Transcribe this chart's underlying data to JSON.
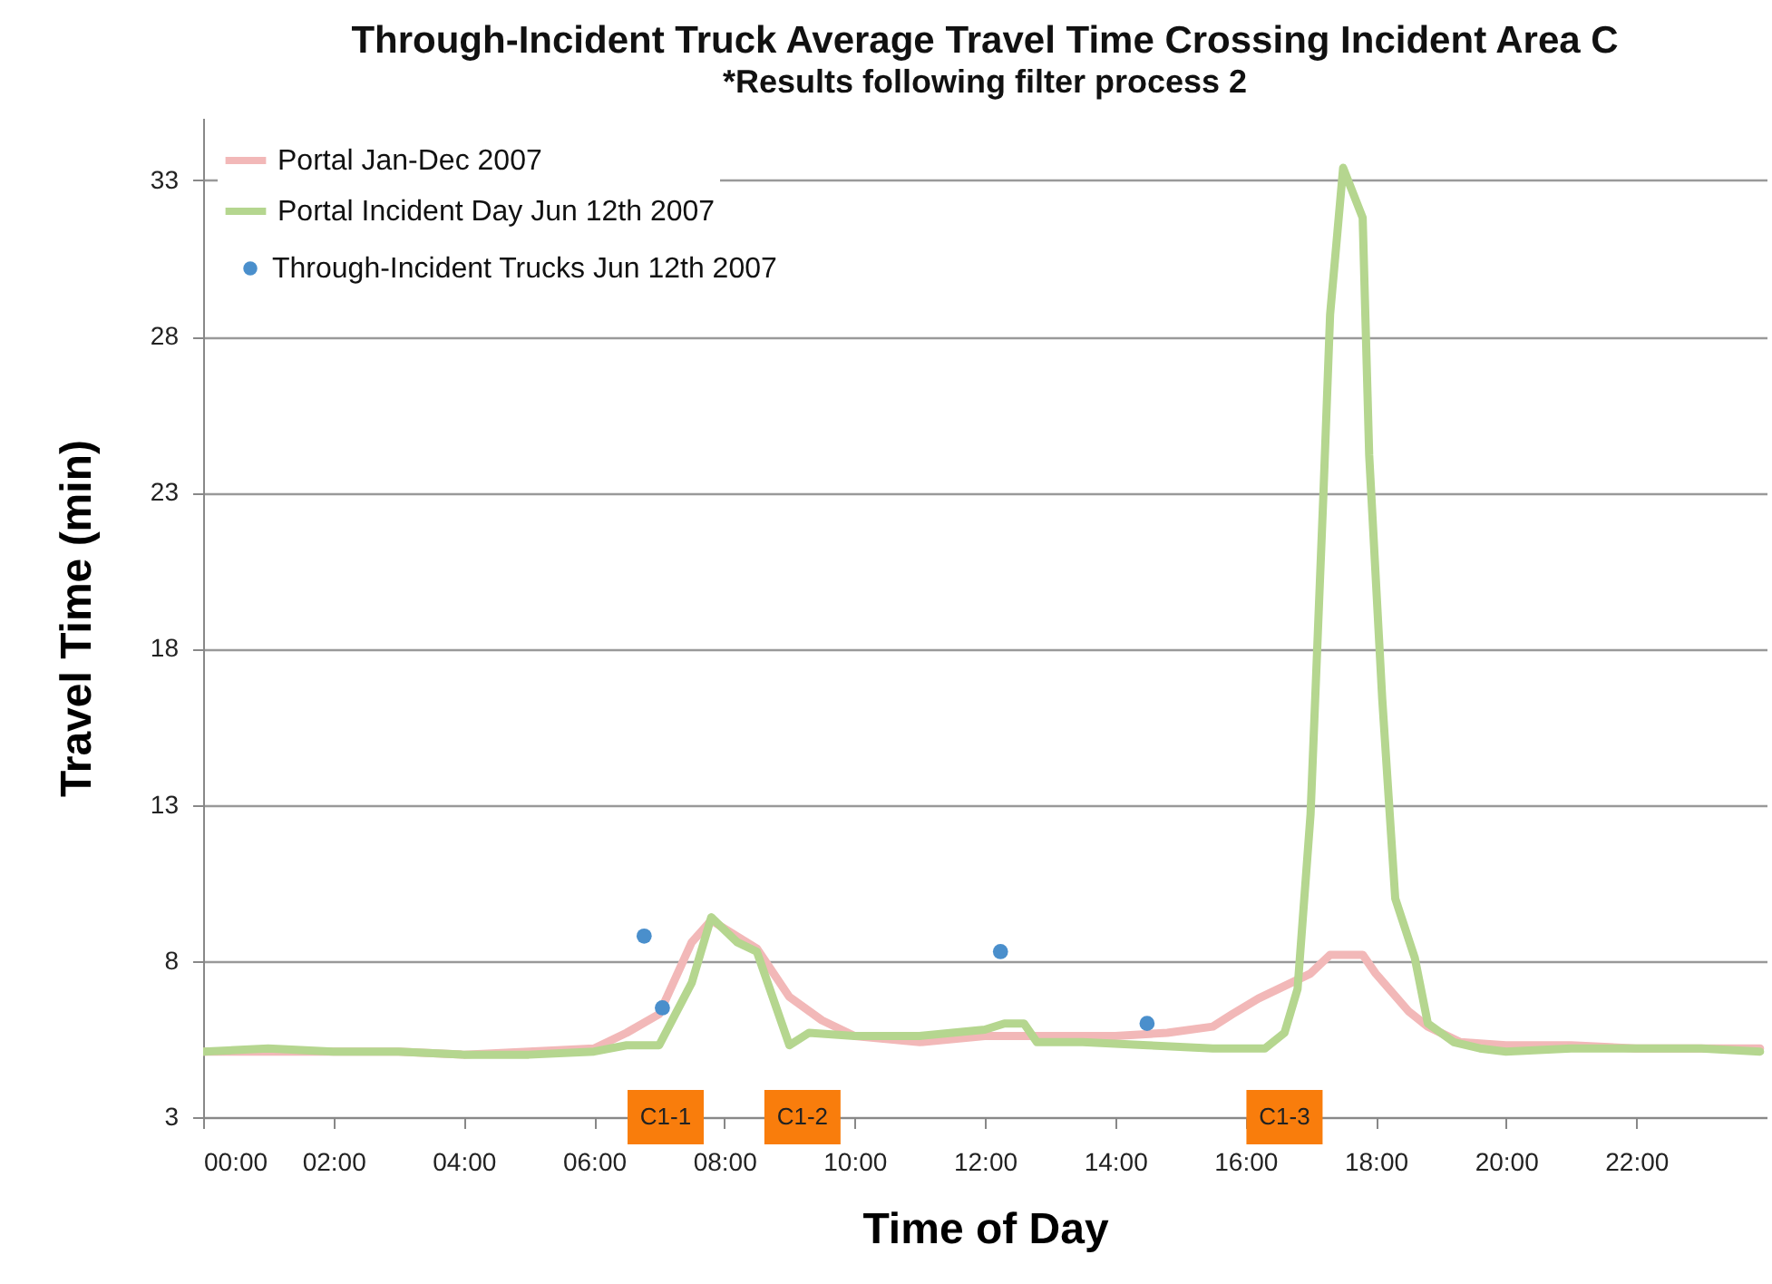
{
  "chart_data": {
    "type": "line",
    "title": "Through-Incident Truck Average Travel Time Crossing Incident Area C",
    "subtitle": "*Results following filter process 2",
    "xlabel": "Time of Day",
    "ylabel": "Travel Time (min)",
    "xlim": [
      0,
      24
    ],
    "xticks": [
      {
        "value": 0,
        "label": "00:00"
      },
      {
        "value": 2,
        "label": "02:00"
      },
      {
        "value": 4,
        "label": "04:00"
      },
      {
        "value": 6,
        "label": "06:00"
      },
      {
        "value": 8,
        "label": "08:00"
      },
      {
        "value": 10,
        "label": "10:00"
      },
      {
        "value": 12,
        "label": "12:00"
      },
      {
        "value": 14,
        "label": "14:00"
      },
      {
        "value": 16,
        "label": "16:00"
      },
      {
        "value": 18,
        "label": "18:00"
      },
      {
        "value": 20,
        "label": "20:00"
      },
      {
        "value": 22,
        "label": "22:00"
      }
    ],
    "ylim": [
      3,
      35
    ],
    "yticks": [
      3,
      8,
      13,
      18,
      23,
      28,
      33
    ],
    "grid": "y",
    "legend": "top left",
    "series": [
      {
        "name": "Portal Jan-Dec 2007",
        "type": "line",
        "color": "#f2b8b8",
        "x": [
          0,
          1,
          2,
          3,
          4,
          5,
          6,
          6.5,
          7.0,
          7.5,
          7.8,
          8.5,
          9.0,
          9.5,
          10,
          11,
          12,
          13,
          14,
          14.8,
          15.5,
          15.8,
          16.2,
          16.6,
          17.0,
          17.3,
          17.8,
          18.0,
          18.5,
          18.8,
          19.3,
          20,
          21,
          22,
          23.9
        ],
        "values": [
          5.1,
          5.1,
          5.1,
          5.1,
          5.0,
          5.1,
          5.2,
          5.7,
          6.3,
          8.6,
          9.3,
          8.4,
          6.85,
          6.1,
          5.6,
          5.4,
          5.6,
          5.6,
          5.6,
          5.7,
          5.9,
          6.3,
          6.8,
          7.2,
          7.6,
          8.2,
          8.2,
          7.6,
          6.4,
          5.9,
          5.4,
          5.3,
          5.3,
          5.2,
          5.2
        ]
      },
      {
        "name": "Portal Incident Day Jun 12th 2007",
        "type": "line",
        "color": "#b5d68f",
        "x": [
          0,
          1,
          2,
          3,
          4,
          5,
          6,
          6.5,
          7.0,
          7.5,
          7.8,
          8.2,
          8.5,
          9.0,
          9.3,
          10,
          11,
          12.0,
          12.3,
          12.6,
          12.8,
          13.5,
          14.5,
          15.5,
          16.0,
          16.3,
          16.6,
          16.8,
          17.0,
          17.2,
          17.3,
          17.5,
          17.8,
          17.9,
          18.1,
          18.3,
          18.6,
          18.8,
          19.2,
          19.6,
          20.0,
          21,
          22,
          23,
          23.9
        ],
        "values": [
          5.1,
          5.2,
          5.1,
          5.1,
          5.0,
          5.0,
          5.1,
          5.3,
          5.3,
          7.3,
          9.4,
          8.6,
          8.3,
          5.3,
          5.7,
          5.6,
          5.6,
          5.8,
          6.0,
          6.0,
          5.4,
          5.4,
          5.3,
          5.2,
          5.2,
          5.2,
          5.7,
          7.1,
          12.7,
          23.1,
          28.7,
          33.4,
          31.8,
          24.2,
          16.4,
          10.0,
          8.1,
          6.0,
          5.4,
          5.2,
          5.1,
          5.2,
          5.2,
          5.2,
          5.1
        ]
      },
      {
        "name": "Through-Incident Trucks Jun 12th 2007",
        "type": "scatter",
        "marker": "circle",
        "color": "#4a8fcc",
        "x": [
          6.77,
          7.05,
          12.24,
          14.49
        ],
        "values": [
          8.8,
          6.5,
          8.3,
          6.0
        ]
      }
    ],
    "annotations": [
      {
        "text": "C1-1",
        "x": 7.1,
        "y": 3
      },
      {
        "text": "C1-2",
        "x": 9.2,
        "y": 3
      },
      {
        "text": "C1-3",
        "x": 16.6,
        "y": 3
      }
    ]
  }
}
